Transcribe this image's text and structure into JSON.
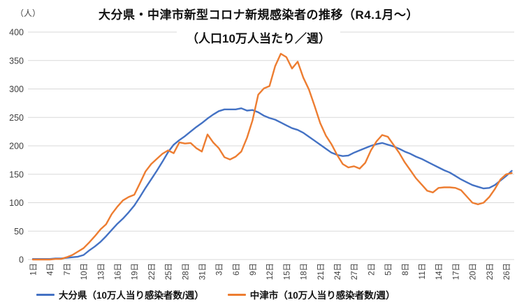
{
  "header": {
    "unit_label": "（人）",
    "title": "大分県・中津市新型コロナ新規感染者の推移（R4.1月～）",
    "subtitle": "（人口10万人当たり／週）"
  },
  "chart_data": {
    "type": "line",
    "title": "大分県・中津市新型コロナ新規感染者の推移（R4.1月～）",
    "subtitle": "（人口10万人当たり／週）",
    "y_axis_unit": "（人）",
    "ylim": [
      0,
      400
    ],
    "y_ticks": [
      0,
      50,
      100,
      150,
      200,
      250,
      300,
      350,
      400
    ],
    "grid": true,
    "legend_position": "bottom",
    "x_description": "daily points, one x tick label every 3 points",
    "label_every_n_points": 3,
    "x_tick_labels": [
      "1日",
      "4日",
      "7日",
      "10日",
      "13日",
      "16日",
      "19日",
      "22日",
      "25日",
      "28日",
      "31日",
      "3日",
      "6日",
      "9日",
      "12日",
      "15日",
      "18日",
      "21日",
      "24日",
      "27日",
      "2日",
      "5日",
      "8日",
      "11日",
      "14日",
      "17日",
      "20日",
      "23日",
      "26日"
    ],
    "series": [
      {
        "name": "大分県（10万人当り感染者数/週）",
        "color": "#4472C4",
        "values": [
          1,
          1,
          1,
          1,
          2,
          2,
          3,
          4,
          5,
          8,
          16,
          23,
          31,
          41,
          52,
          63,
          72,
          83,
          95,
          110,
          126,
          141,
          156,
          172,
          189,
          202,
          210,
          217,
          225,
          233,
          240,
          248,
          255,
          261,
          264,
          264,
          264,
          266,
          262,
          263,
          259,
          253,
          249,
          246,
          241,
          236,
          231,
          228,
          223,
          216,
          209,
          202,
          195,
          188,
          184,
          182,
          183,
          188,
          192,
          196,
          200,
          203,
          205,
          202,
          199,
          195,
          190,
          186,
          181,
          177,
          172,
          167,
          162,
          157,
          153,
          147,
          141,
          136,
          131,
          128,
          125,
          126,
          131,
          139,
          147,
          156
        ]
      },
      {
        "name": "中津市（10万人当り感染者数/週）",
        "color": "#ED7D31",
        "values": [
          0,
          0,
          0,
          0,
          1,
          1,
          4,
          8,
          14,
          20,
          30,
          41,
          53,
          62,
          80,
          93,
          104,
          110,
          114,
          134,
          155,
          168,
          177,
          186,
          192,
          187,
          206,
          204,
          205,
          196,
          190,
          220,
          206,
          196,
          180,
          176,
          181,
          190,
          214,
          245,
          290,
          301,
          305,
          340,
          362,
          356,
          336,
          348,
          320,
          299,
          270,
          240,
          218,
          203,
          184,
          168,
          162,
          164,
          160,
          170,
          192,
          208,
          219,
          216,
          202,
          188,
          171,
          157,
          143,
          132,
          121,
          118,
          126,
          127,
          127,
          126,
          122,
          111,
          100,
          97,
          100,
          110,
          124,
          141,
          150,
          152
        ]
      }
    ],
    "gridline_color": "#D9D9D9",
    "tick_label_color": "#404040"
  }
}
